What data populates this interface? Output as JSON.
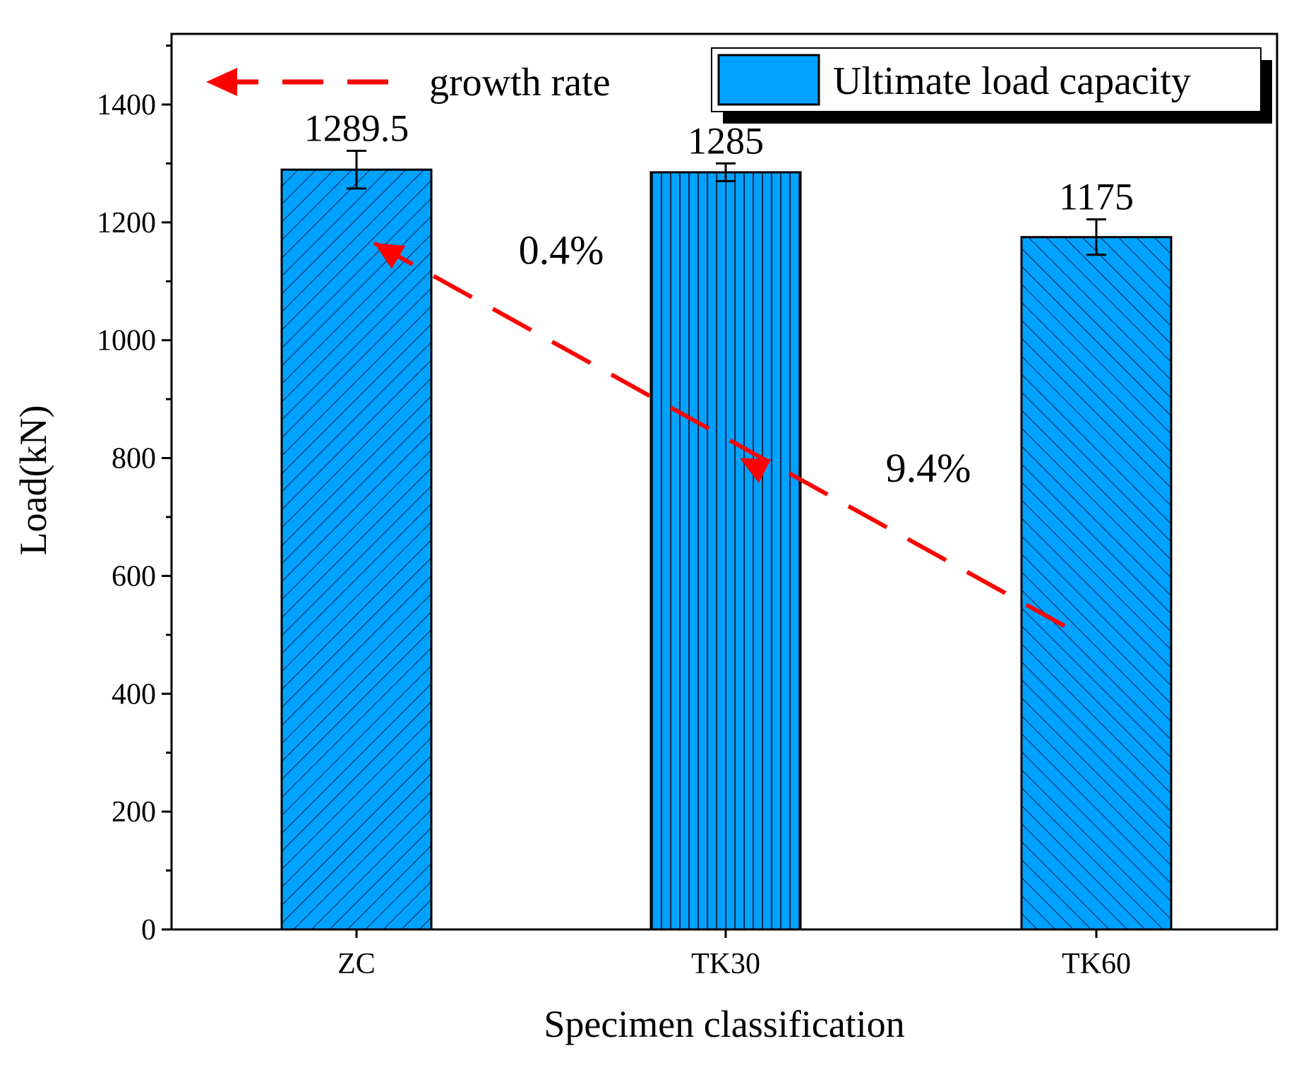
{
  "chart_data": {
    "type": "bar",
    "categories": [
      "ZC",
      "TK30",
      "TK60"
    ],
    "values": [
      1289.5,
      1285,
      1175
    ],
    "errors": [
      32,
      15,
      30
    ],
    "data_labels": [
      "1289.5",
      "1285",
      "1175"
    ],
    "xlabel": "Specimen classification",
    "ylabel": "Load(kN)",
    "ylim": [
      0,
      1550
    ],
    "yticks": [
      0,
      200,
      400,
      600,
      800,
      1000,
      1200,
      1400
    ],
    "ytick_labels": [
      "0",
      "200",
      "400",
      "600",
      "800",
      "1000",
      "1200",
      "1400"
    ],
    "legend": {
      "bar_label": "Ultimate load capacity",
      "arrow_label": "growth rate",
      "placement": "top"
    },
    "growth_annotations": [
      {
        "from": "TK30",
        "to": "ZC",
        "label": "0.4%"
      },
      {
        "from": "TK60",
        "to": "TK30",
        "label": "9.4%"
      }
    ],
    "colors": {
      "bar_fill": "#00a2ff",
      "bar_hatch": "#0a2a55",
      "arrow": "#ff0000",
      "axis": "#000000"
    },
    "hatch_styles": [
      "diagonal-up",
      "vertical",
      "diagonal-down"
    ]
  }
}
